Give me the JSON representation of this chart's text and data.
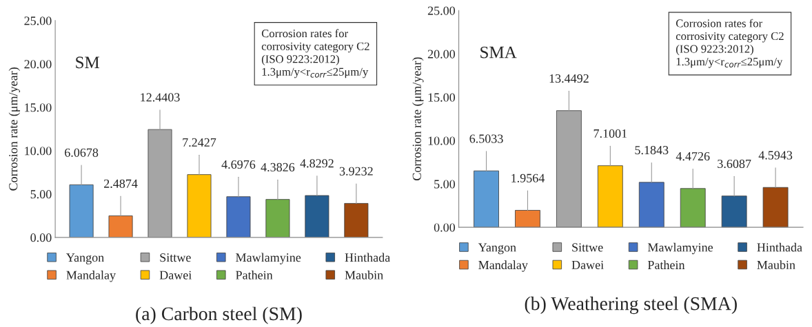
{
  "chart_data": [
    {
      "type": "bar",
      "title": "(a) Carbon steel (SM)",
      "ylabel": "Corrosion rate (μm/year)",
      "categories": [
        null
      ],
      "series": [
        {
          "name": "Yangon",
          "color": "#5b9bd5",
          "values": [
            6.0678
          ]
        },
        {
          "name": "Mandalay",
          "color": "#ed7d31",
          "values": [
            2.4874
          ]
        },
        {
          "name": "Sittwe",
          "color": "#a5a5a5",
          "values": [
            12.4403
          ]
        },
        {
          "name": "Dawei",
          "color": "#ffc000",
          "values": [
            7.2427
          ]
        },
        {
          "name": "Mawlamyine",
          "color": "#4472c4",
          "values": [
            4.6976
          ]
        },
        {
          "name": "Pathein",
          "color": "#70ad47",
          "values": [
            4.3826
          ]
        },
        {
          "name": "Hinthada",
          "color": "#255e91",
          "values": [
            4.8292
          ]
        },
        {
          "name": "Maubin",
          "color": "#9e480e",
          "values": [
            3.9232
          ]
        }
      ],
      "ylim": [
        0,
        25
      ],
      "yticks": [
        {
          "value": 0,
          "label": "0.00"
        },
        {
          "value": 5,
          "label": "5.00"
        },
        {
          "value": 10,
          "label": "10.00"
        },
        {
          "value": 15,
          "label": "15.00"
        },
        {
          "value": 20,
          "label": "20.00"
        },
        {
          "value": 25,
          "label": "25.00"
        }
      ],
      "annotations": [
        "SM",
        "Corrosion rates for\ncorrosivity category C2\n(ISO 9223:2012)\n1.3μm/y<r$_{corr}$≤25μm/y"
      ],
      "data_labels": true,
      "legend": "bottom",
      "grid": false,
      "tick_labels": "y"
    },
    {
      "type": "bar",
      "title": "(b) Weathering steel (SMA)",
      "ylabel": "Corrosion rate (μm/year)",
      "categories": [
        null
      ],
      "series": [
        {
          "name": "Yangon",
          "color": "#5b9bd5",
          "values": [
            6.5033
          ]
        },
        {
          "name": "Mandalay",
          "color": "#ed7d31",
          "values": [
            1.9564
          ]
        },
        {
          "name": "Sittwe",
          "color": "#a5a5a5",
          "values": [
            13.4492
          ]
        },
        {
          "name": "Dawei",
          "color": "#ffc000",
          "values": [
            7.1001
          ]
        },
        {
          "name": "Mawlamyine",
          "color": "#4472c4",
          "values": [
            5.1843
          ]
        },
        {
          "name": "Pathein",
          "color": "#70ad47",
          "values": [
            4.4726
          ]
        },
        {
          "name": "Hinthada",
          "color": "#255e91",
          "values": [
            3.6087
          ]
        },
        {
          "name": "Maubin",
          "color": "#9e480e",
          "values": [
            4.5943
          ]
        }
      ],
      "ylim": [
        0,
        25
      ],
      "yticks": [
        {
          "value": 0,
          "label": "0.00"
        },
        {
          "value": 5,
          "label": "5.00"
        },
        {
          "value": 10,
          "label": "10.00"
        },
        {
          "value": 15,
          "label": "15.00"
        },
        {
          "value": 20,
          "label": "20.00"
        },
        {
          "value": 25,
          "label": "25.00"
        }
      ],
      "annotations": [
        "SMA",
        "Corrosion rates for\ncorrosivity category C2\n(ISO 9223:2012)\n1.3μm/y<r$_{corr}$≤25μm/y"
      ],
      "data_labels": true,
      "legend": "bottom",
      "grid": false,
      "tick_labels": "y"
    }
  ]
}
